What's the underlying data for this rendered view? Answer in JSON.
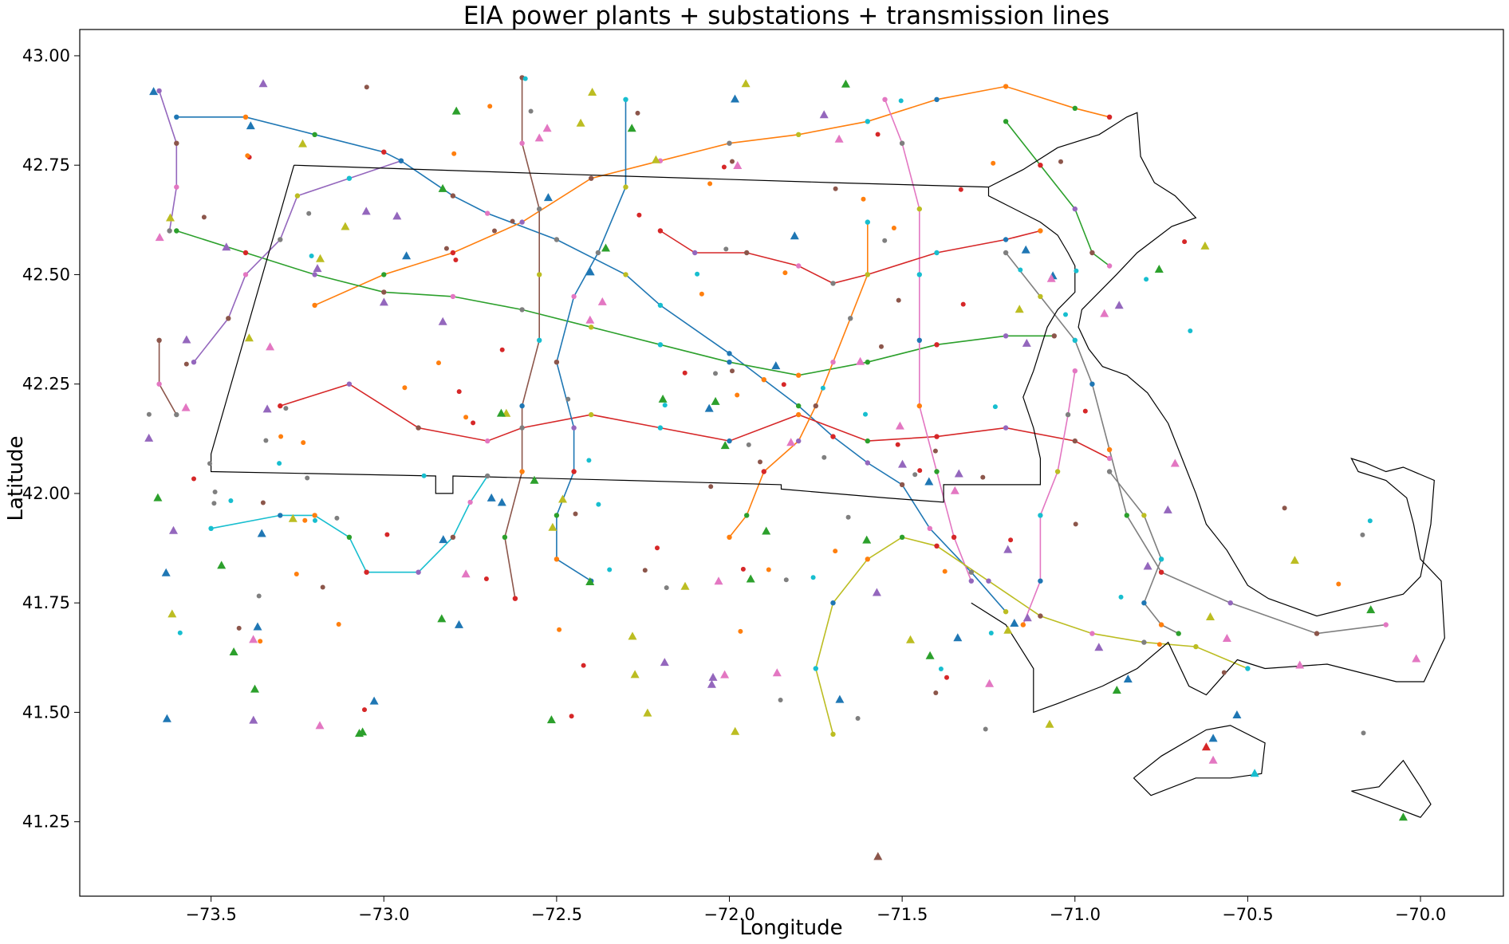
{
  "chart_data": {
    "type": "map",
    "title": "EIA power plants + substations + transmission lines",
    "xlabel": "Longitude",
    "ylabel": "Latitude",
    "xlim": [
      -73.88,
      -69.76
    ],
    "ylim": [
      41.08,
      43.06
    ],
    "x_ticks": [
      -73.5,
      -73.0,
      -72.5,
      -72.0,
      -71.5,
      -71.0,
      -70.5,
      -70.0
    ],
    "x_tick_labels": [
      "−73.5",
      "−73.0",
      "−72.5",
      "−72.0",
      "−71.5",
      "−71.0",
      "−70.5",
      "−70.0"
    ],
    "y_ticks": [
      41.25,
      41.5,
      41.75,
      42.0,
      42.25,
      42.5,
      42.75,
      43.0
    ],
    "y_tick_labels": [
      "41.25",
      "41.50",
      "41.75",
      "42.00",
      "42.25",
      "42.50",
      "42.75",
      "43.00"
    ],
    "palette": [
      "#1f77b4",
      "#ff7f0e",
      "#2ca02c",
      "#d62728",
      "#9467bd",
      "#8c564b",
      "#e377c2",
      "#7f7f7f",
      "#bcbd22",
      "#17becf"
    ],
    "outline_color": "#000000",
    "service_area_outline": [
      [
        -73.26,
        42.75
      ],
      [
        -72.5,
        42.73
      ],
      [
        -71.7,
        42.71
      ],
      [
        -71.25,
        42.7
      ],
      [
        -71.25,
        42.68
      ],
      [
        -71.2,
        42.66
      ],
      [
        -71.15,
        42.64
      ],
      [
        -71.1,
        42.62
      ],
      [
        -71.05,
        42.59
      ],
      [
        -71.02,
        42.55
      ],
      [
        -71.0,
        42.52
      ],
      [
        -71.0,
        42.46
      ],
      [
        -71.05,
        42.42
      ],
      [
        -71.08,
        42.38
      ],
      [
        -71.1,
        42.33
      ],
      [
        -71.12,
        42.28
      ],
      [
        -71.15,
        42.22
      ],
      [
        -71.12,
        42.15
      ],
      [
        -71.1,
        42.08
      ],
      [
        -71.1,
        42.02
      ],
      [
        -71.38,
        42.02
      ],
      [
        -71.38,
        41.98
      ],
      [
        -71.55,
        41.99
      ],
      [
        -71.85,
        42.01
      ],
      [
        -71.85,
        42.02
      ],
      [
        -72.3,
        42.03
      ],
      [
        -72.8,
        42.04
      ],
      [
        -72.8,
        42.0
      ],
      [
        -72.85,
        42.0
      ],
      [
        -72.85,
        42.04
      ],
      [
        -73.5,
        42.05
      ],
      [
        -73.5,
        42.09
      ],
      [
        -73.26,
        42.75
      ]
    ],
    "coastline": [
      [
        -71.25,
        42.7
      ],
      [
        -71.15,
        42.74
      ],
      [
        -71.05,
        42.79
      ],
      [
        -70.93,
        42.82
      ],
      [
        -70.85,
        42.86
      ],
      [
        -70.82,
        42.87
      ],
      [
        -70.81,
        42.77
      ],
      [
        -70.77,
        42.71
      ],
      [
        -70.71,
        42.68
      ],
      [
        -70.65,
        42.63
      ],
      [
        -70.72,
        42.61
      ],
      [
        -70.82,
        42.55
      ],
      [
        -70.88,
        42.5
      ],
      [
        -70.93,
        42.46
      ],
      [
        -70.98,
        42.42
      ],
      [
        -70.99,
        42.38
      ],
      [
        -70.96,
        42.33
      ],
      [
        -70.92,
        42.29
      ],
      [
        -70.85,
        42.27
      ],
      [
        -70.79,
        42.23
      ],
      [
        -70.73,
        42.16
      ],
      [
        -70.69,
        42.08
      ],
      [
        -70.65,
        42.0
      ],
      [
        -70.62,
        41.93
      ],
      [
        -70.56,
        41.87
      ],
      [
        -70.5,
        41.79
      ],
      [
        -70.44,
        41.76
      ],
      [
        -70.3,
        41.72
      ],
      [
        -70.15,
        41.75
      ],
      [
        -70.05,
        41.77
      ],
      [
        -70.0,
        41.81
      ],
      [
        -69.97,
        41.93
      ],
      [
        -69.96,
        42.03
      ],
      [
        -70.05,
        42.06
      ],
      [
        -70.1,
        42.05
      ],
      [
        -70.16,
        42.07
      ],
      [
        -70.2,
        42.08
      ],
      [
        -70.18,
        42.05
      ],
      [
        -70.1,
        42.03
      ],
      [
        -70.04,
        41.99
      ],
      [
        -70.02,
        41.93
      ],
      [
        -70.0,
        41.85
      ],
      [
        -69.94,
        41.8
      ],
      [
        -69.93,
        41.67
      ],
      [
        -69.99,
        41.57
      ],
      [
        -70.07,
        41.57
      ],
      [
        -70.27,
        41.61
      ],
      [
        -70.45,
        41.6
      ],
      [
        -70.53,
        41.62
      ],
      [
        -70.62,
        41.54
      ],
      [
        -70.67,
        41.56
      ],
      [
        -70.73,
        41.66
      ],
      [
        -70.82,
        41.6
      ],
      [
        -70.92,
        41.56
      ],
      [
        -71.05,
        41.52
      ],
      [
        -71.12,
        41.5
      ],
      [
        -71.12,
        41.6
      ],
      [
        -71.2,
        41.7
      ],
      [
        -71.3,
        41.75
      ]
    ],
    "marthas_vineyard": [
      [
        -70.83,
        41.35
      ],
      [
        -70.78,
        41.31
      ],
      [
        -70.65,
        41.35
      ],
      [
        -70.55,
        41.35
      ],
      [
        -70.46,
        41.36
      ],
      [
        -70.45,
        41.43
      ],
      [
        -70.55,
        41.47
      ],
      [
        -70.62,
        41.46
      ],
      [
        -70.75,
        41.4
      ],
      [
        -70.83,
        41.35
      ]
    ],
    "nantucket": [
      [
        -70.2,
        41.32
      ],
      [
        -70.1,
        41.29
      ],
      [
        -70.0,
        41.26
      ],
      [
        -69.97,
        41.29
      ],
      [
        -70.0,
        41.33
      ],
      [
        -70.05,
        41.39
      ],
      [
        -70.12,
        41.33
      ],
      [
        -70.2,
        41.32
      ]
    ],
    "transmission_lines": [
      [
        [
          -73.6,
          42.86
        ],
        [
          -73.4,
          42.86
        ],
        [
          -73.2,
          42.82
        ],
        [
          -73.0,
          42.78
        ],
        [
          -72.95,
          42.76
        ],
        [
          -72.8,
          42.68
        ],
        [
          -72.7,
          42.64
        ],
        [
          -72.5,
          42.58
        ],
        [
          -72.3,
          42.5
        ],
        [
          -72.2,
          42.43
        ],
        [
          -72.0,
          42.32
        ],
        [
          -71.9,
          42.26
        ],
        [
          -71.8,
          42.2
        ],
        [
          -71.7,
          42.13
        ],
        [
          -71.6,
          42.07
        ],
        [
          -71.5,
          42.02
        ],
        [
          -71.42,
          41.92
        ],
        [
          -71.3,
          41.82
        ],
        [
          -71.2,
          41.73
        ]
      ],
      [
        [
          -73.2,
          42.43
        ],
        [
          -73.0,
          42.5
        ],
        [
          -72.8,
          42.55
        ],
        [
          -72.6,
          42.62
        ],
        [
          -72.4,
          42.72
        ],
        [
          -72.2,
          42.76
        ],
        [
          -72.0,
          42.8
        ],
        [
          -71.8,
          42.82
        ],
        [
          -71.6,
          42.85
        ],
        [
          -71.4,
          42.9
        ],
        [
          -71.2,
          42.93
        ],
        [
          -71.0,
          42.88
        ],
        [
          -70.9,
          42.86
        ]
      ],
      [
        [
          -73.6,
          42.6
        ],
        [
          -73.4,
          42.55
        ],
        [
          -73.2,
          42.5
        ],
        [
          -73.0,
          42.46
        ],
        [
          -72.8,
          42.45
        ],
        [
          -72.6,
          42.42
        ],
        [
          -72.4,
          42.38
        ],
        [
          -72.2,
          42.34
        ],
        [
          -72.0,
          42.3
        ],
        [
          -71.8,
          42.27
        ],
        [
          -71.6,
          42.3
        ],
        [
          -71.4,
          42.34
        ],
        [
          -71.2,
          42.36
        ],
        [
          -71.06,
          42.36
        ]
      ],
      [
        [
          -73.3,
          42.2
        ],
        [
          -73.1,
          42.25
        ],
        [
          -72.9,
          42.15
        ],
        [
          -72.7,
          42.12
        ],
        [
          -72.6,
          42.15
        ],
        [
          -72.4,
          42.18
        ],
        [
          -72.2,
          42.15
        ],
        [
          -72.0,
          42.12
        ],
        [
          -71.8,
          42.18
        ],
        [
          -71.6,
          42.12
        ],
        [
          -71.4,
          42.13
        ],
        [
          -71.2,
          42.15
        ],
        [
          -71.0,
          42.12
        ],
        [
          -70.9,
          42.08
        ]
      ],
      [
        [
          -73.55,
          42.3
        ],
        [
          -73.45,
          42.4
        ],
        [
          -73.4,
          42.5
        ],
        [
          -73.3,
          42.58
        ],
        [
          -73.25,
          42.68
        ],
        [
          -73.1,
          42.72
        ],
        [
          -72.95,
          42.76
        ]
      ],
      [
        [
          -72.6,
          42.95
        ],
        [
          -72.6,
          42.8
        ],
        [
          -72.55,
          42.65
        ],
        [
          -72.55,
          42.5
        ],
        [
          -72.55,
          42.35
        ],
        [
          -72.6,
          42.2
        ],
        [
          -72.6,
          42.05
        ],
        [
          -72.65,
          41.9
        ],
        [
          -72.62,
          41.76
        ]
      ],
      [
        [
          -71.55,
          42.9
        ],
        [
          -71.5,
          42.8
        ],
        [
          -71.45,
          42.65
        ],
        [
          -71.45,
          42.5
        ],
        [
          -71.45,
          42.35
        ],
        [
          -71.45,
          42.2
        ],
        [
          -71.4,
          42.05
        ],
        [
          -71.35,
          41.9
        ],
        [
          -71.3,
          41.8
        ]
      ],
      [
        [
          -71.2,
          42.55
        ],
        [
          -71.1,
          42.45
        ],
        [
          -71.0,
          42.35
        ],
        [
          -70.95,
          42.25
        ],
        [
          -70.9,
          42.1
        ],
        [
          -70.85,
          41.95
        ],
        [
          -70.75,
          41.82
        ],
        [
          -70.55,
          41.75
        ],
        [
          -70.3,
          41.68
        ],
        [
          -70.1,
          41.7
        ]
      ],
      [
        [
          -71.7,
          41.45
        ],
        [
          -71.75,
          41.6
        ],
        [
          -71.7,
          41.75
        ],
        [
          -71.6,
          41.85
        ],
        [
          -71.5,
          41.9
        ],
        [
          -71.4,
          41.88
        ],
        [
          -71.25,
          41.8
        ],
        [
          -71.1,
          41.72
        ],
        [
          -70.95,
          41.68
        ],
        [
          -70.8,
          41.66
        ],
        [
          -70.65,
          41.65
        ],
        [
          -70.5,
          41.6
        ]
      ],
      [
        [
          -73.5,
          41.92
        ],
        [
          -73.3,
          41.95
        ],
        [
          -73.2,
          41.95
        ],
        [
          -73.1,
          41.9
        ],
        [
          -73.05,
          41.82
        ],
        [
          -72.9,
          41.82
        ],
        [
          -72.8,
          41.9
        ],
        [
          -72.75,
          41.98
        ],
        [
          -72.7,
          42.04
        ]
      ],
      [
        [
          -72.4,
          41.8
        ],
        [
          -72.5,
          41.85
        ],
        [
          -72.5,
          41.95
        ],
        [
          -72.45,
          42.05
        ],
        [
          -72.45,
          42.15
        ],
        [
          -72.5,
          42.3
        ],
        [
          -72.45,
          42.45
        ],
        [
          -72.38,
          42.55
        ],
        [
          -72.3,
          42.7
        ],
        [
          -72.3,
          42.9
        ]
      ],
      [
        [
          -72.0,
          41.9
        ],
        [
          -71.95,
          41.95
        ],
        [
          -71.9,
          42.05
        ],
        [
          -71.8,
          42.12
        ],
        [
          -71.75,
          42.2
        ],
        [
          -71.7,
          42.3
        ],
        [
          -71.65,
          42.4
        ],
        [
          -71.6,
          42.5
        ],
        [
          -71.6,
          42.62
        ]
      ],
      [
        [
          -71.2,
          42.85
        ],
        [
          -71.1,
          42.75
        ],
        [
          -71.0,
          42.65
        ],
        [
          -70.95,
          42.55
        ],
        [
          -70.9,
          42.52
        ]
      ],
      [
        [
          -72.2,
          42.6
        ],
        [
          -72.1,
          42.55
        ],
        [
          -71.95,
          42.55
        ],
        [
          -71.8,
          42.52
        ],
        [
          -71.7,
          42.48
        ],
        [
          -71.6,
          42.5
        ],
        [
          -71.4,
          42.55
        ],
        [
          -71.2,
          42.58
        ],
        [
          -71.1,
          42.6
        ]
      ],
      [
        [
          -73.65,
          42.92
        ],
        [
          -73.6,
          42.8
        ],
        [
          -73.6,
          42.7
        ],
        [
          -73.62,
          42.6
        ]
      ],
      [
        [
          -73.65,
          42.35
        ],
        [
          -73.65,
          42.25
        ],
        [
          -73.6,
          42.18
        ]
      ],
      [
        [
          -71.0,
          42.28
        ],
        [
          -71.02,
          42.18
        ],
        [
          -71.05,
          42.05
        ],
        [
          -71.1,
          41.95
        ],
        [
          -71.1,
          41.8
        ],
        [
          -71.15,
          41.7
        ]
      ],
      [
        [
          -70.9,
          42.05
        ],
        [
          -70.8,
          41.95
        ],
        [
          -70.75,
          41.85
        ],
        [
          -70.8,
          41.75
        ],
        [
          -70.75,
          41.7
        ],
        [
          -70.7,
          41.68
        ]
      ]
    ],
    "substations_color_count": 10,
    "plants_color_count": 10
  }
}
